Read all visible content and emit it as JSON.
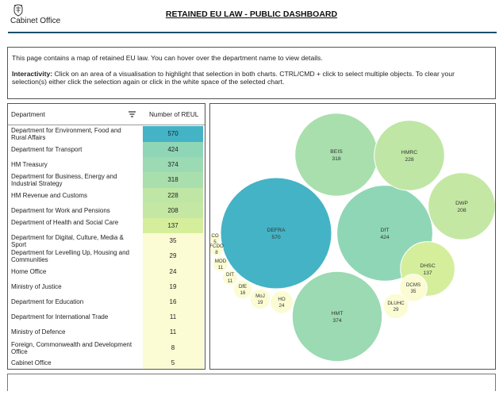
{
  "header": {
    "org_name": "Cabinet Office",
    "title": "RETAINED EU LAW - PUBLIC DASHBOARD"
  },
  "intro": {
    "description": "This page contains a map of retained EU law. You can hover over the department name to view details.",
    "interactivity_label": "Interactivity:",
    "interactivity_text": " Click on an area of a visualisation to highlight that selection in both charts. CTRL/CMD + click to select multiple objects. To clear your selection(s) either click the selection again or click in the white space of the selected chart."
  },
  "table": {
    "col_department": "Department",
    "col_count": "Number of REUL",
    "rows": [
      {
        "dept": "Department for Environment, Food and Rural Affairs",
        "count": 570
      },
      {
        "dept": "Department for Transport",
        "count": 424
      },
      {
        "dept": "HM Treasury",
        "count": 374
      },
      {
        "dept": "Department for Business, Energy and Industrial Strategy",
        "count": 318
      },
      {
        "dept": "HM Revenue and Customs",
        "count": 228
      },
      {
        "dept": "Department for Work and Pensions",
        "count": 208
      },
      {
        "dept": "Department of Health and Social Care",
        "count": 137
      },
      {
        "dept": "Department for Digital, Culture, Media & Sport",
        "count": 35
      },
      {
        "dept": "Department for Levelling Up, Housing and Communities",
        "count": 29
      },
      {
        "dept": "Home Office",
        "count": 24
      },
      {
        "dept": "Ministry of Justice",
        "count": 19
      },
      {
        "dept": "Department for Education",
        "count": 16
      },
      {
        "dept": "Department for International Trade",
        "count": 11
      },
      {
        "dept": "Ministry of Defence",
        "count": 11
      },
      {
        "dept": "Foreign, Commonwealth and Development Office",
        "count": 8
      },
      {
        "dept": "Cabinet Office",
        "count": 5
      }
    ]
  },
  "colors": {
    "header_rule": "#1d4f6e",
    "scale_high": "#44b3c5",
    "scale_mid": "#8fd6b7",
    "scale_low": "#d5ee9c",
    "scale_min": "#fbfcd3"
  },
  "chart_data": {
    "type": "bubble",
    "bubbles": [
      {
        "label": "DEFRA",
        "value": 570
      },
      {
        "label": "DfT",
        "value": 424
      },
      {
        "label": "HMT",
        "value": 374
      },
      {
        "label": "BEIS",
        "value": 318
      },
      {
        "label": "HMRC",
        "value": 228
      },
      {
        "label": "DWP",
        "value": 208
      },
      {
        "label": "DHSC",
        "value": 137
      },
      {
        "label": "DCMS",
        "value": 35
      },
      {
        "label": "DLUHC",
        "value": 29
      },
      {
        "label": "HO",
        "value": 24
      },
      {
        "label": "MoJ",
        "value": 19
      },
      {
        "label": "DfE",
        "value": 16
      },
      {
        "label": "DIT",
        "value": 11
      },
      {
        "label": "MOD",
        "value": 11
      },
      {
        "label": "FCDO",
        "value": 8
      },
      {
        "label": "CO",
        "value": 5
      }
    ]
  }
}
